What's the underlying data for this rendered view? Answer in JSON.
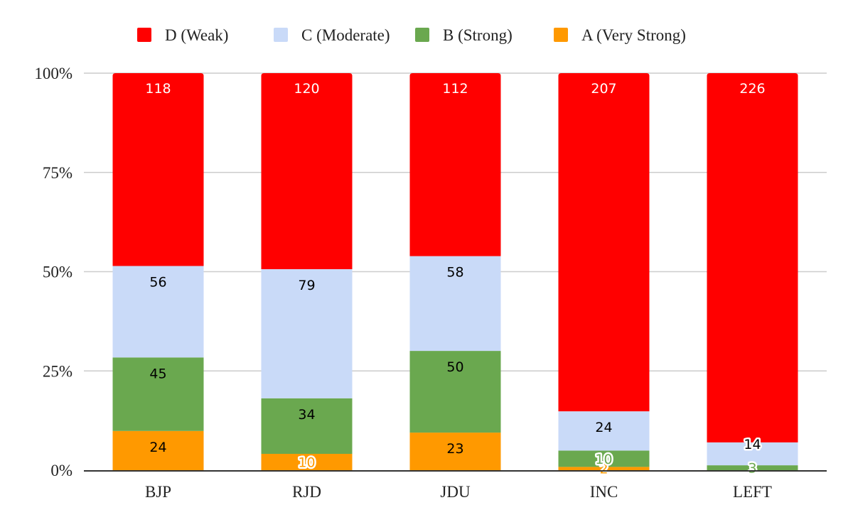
{
  "chart_data": {
    "type": "bar",
    "stacked": true,
    "normalized": "percent",
    "title": "",
    "xlabel": "",
    "ylabel": "",
    "categories": [
      "BJP",
      "RJD",
      "JDU",
      "INC",
      "LEFT"
    ],
    "series": [
      {
        "name": "A (Very Strong)",
        "color": "#ff9900",
        "values": [
          24,
          10,
          23,
          2,
          0
        ]
      },
      {
        "name": "B (Strong)",
        "color": "#6aa84f",
        "values": [
          45,
          34,
          50,
          10,
          3
        ]
      },
      {
        "name": "C (Moderate)",
        "color": "#c9daf8",
        "values": [
          56,
          79,
          58,
          24,
          14
        ]
      },
      {
        "name": "D (Weak)",
        "color": "#ff0000",
        "values": [
          118,
          120,
          112,
          207,
          226
        ]
      }
    ],
    "legend_order": [
      "D (Weak)",
      "C (Moderate)",
      "B (Strong)",
      "A (Very Strong)"
    ],
    "legend_position": "top",
    "yticks": [
      "0%",
      "25%",
      "50%",
      "75%",
      "100%"
    ],
    "ylim": [
      0,
      100
    ],
    "grid": true
  }
}
